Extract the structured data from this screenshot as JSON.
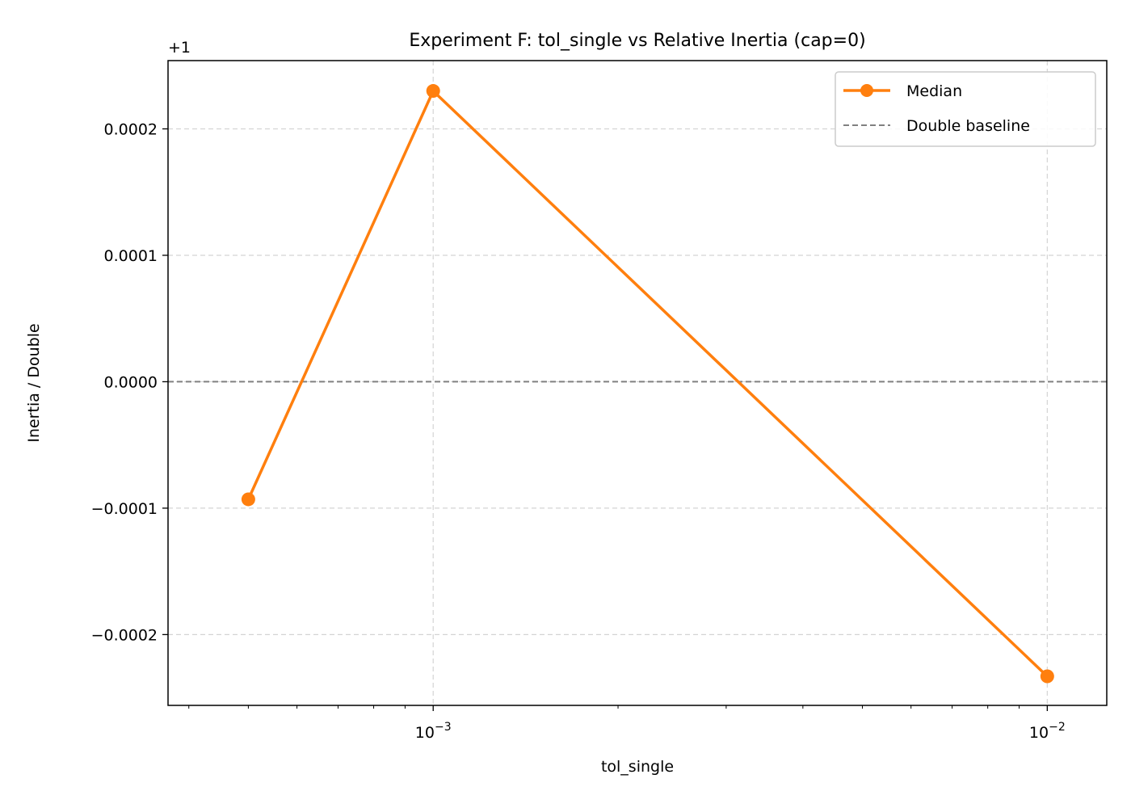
{
  "chart_data": {
    "type": "line",
    "title": "Experiment F: tol_single vs Relative Inertia (cap=0)",
    "xlabel": "tol_single",
    "ylabel": "Inertia / Double",
    "x_scale": "log",
    "xlim": [
      0.00037,
      0.0125
    ],
    "ylim": [
      -0.000256,
      0.000254
    ],
    "y_offset_label": "+1",
    "grid": true,
    "legend_position": "top-right",
    "x_ticks": [
      {
        "value": 0.001,
        "base": "10",
        "exp": "−3"
      },
      {
        "value": 0.01,
        "base": "10",
        "exp": "−2"
      }
    ],
    "y_ticks": [
      {
        "value": -0.0002,
        "label": "−0.0002"
      },
      {
        "value": -0.0001,
        "label": "−0.0001"
      },
      {
        "value": 0.0,
        "label": "0.0000"
      },
      {
        "value": 0.0001,
        "label": "0.0001"
      },
      {
        "value": 0.0002,
        "label": "0.0002"
      }
    ],
    "series": [
      {
        "name": "Median",
        "color": "#ff7f0e",
        "marker": "circle",
        "x": [
          0.0005,
          0.001,
          0.01
        ],
        "y": [
          -9.3e-05,
          0.00023,
          -0.000233
        ]
      }
    ],
    "reference_line": {
      "name": "Double baseline",
      "y": 0.0,
      "color": "#808080",
      "style": "dashed"
    }
  }
}
